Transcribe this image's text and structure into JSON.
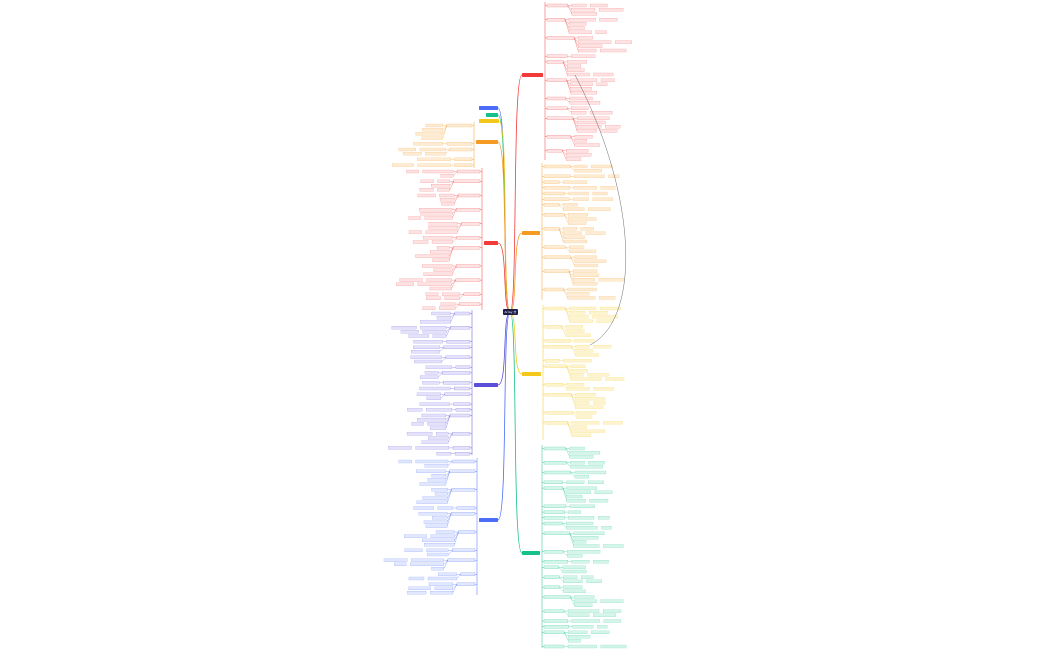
{
  "center": {
    "label": "Array 方法",
    "color": "#1f1f4a"
  },
  "branches": [
    {
      "side": "right",
      "color": "#f23a3a",
      "fill": "#fde3e3"
    },
    {
      "side": "right",
      "color": "#f59a23",
      "fill": "#fdebd3"
    },
    {
      "side": "right",
      "color": "#f2c81a",
      "fill": "#fdf4cf"
    },
    {
      "side": "right",
      "color": "#16c08a",
      "fill": "#d5f5e9"
    },
    {
      "side": "left",
      "color": "#4a6cf7",
      "fill": "#e0e7fe"
    },
    {
      "side": "left",
      "color": "#16c08a",
      "fill": "#d5f5e9"
    },
    {
      "side": "left",
      "color": "#f2c81a",
      "fill": "#fdf4cf"
    },
    {
      "side": "left",
      "color": "#f59a23",
      "fill": "#fdebd3"
    },
    {
      "side": "left",
      "color": "#f23a3a",
      "fill": "#fde3e3"
    },
    {
      "side": "left",
      "color": "#5b4fd8",
      "fill": "#e4e2fb"
    },
    {
      "side": "left",
      "color": "#4a6cf7",
      "fill": "#e0e7fe"
    }
  ]
}
